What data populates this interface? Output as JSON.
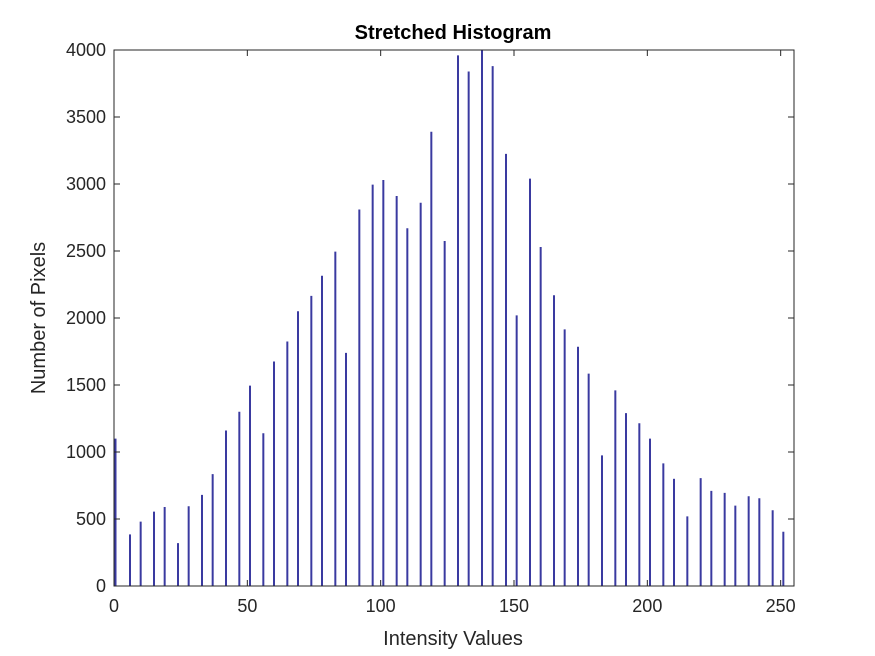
{
  "chart_data": {
    "type": "bar",
    "title": "Stretched Histogram",
    "xlabel": "Intensity Values",
    "ylabel": "Number of Pixels",
    "xlim": [
      0,
      255
    ],
    "ylim": [
      0,
      4000
    ],
    "xticks": [
      "0",
      "50",
      "100",
      "150",
      "200",
      "250"
    ],
    "yticks": [
      "0",
      "500",
      "1000",
      "1500",
      "2000",
      "2500",
      "3000",
      "3500",
      "4000"
    ],
    "grid": false,
    "bar_color": "#3a3aa0",
    "axis_color": "#262626",
    "x": [
      0,
      6,
      10,
      15,
      19,
      24,
      28,
      33,
      37,
      42,
      47,
      51,
      56,
      60,
      65,
      69,
      74,
      78,
      83,
      87,
      92,
      97,
      101,
      106,
      110,
      115,
      119,
      124,
      129,
      133,
      138,
      142,
      147,
      151,
      156,
      160,
      165,
      169,
      174,
      178,
      183,
      188,
      192,
      197,
      201,
      206,
      210,
      215,
      220,
      224,
      229,
      233,
      238,
      242,
      247,
      251
    ],
    "values": [
      1100,
      385,
      480,
      555,
      590,
      320,
      595,
      680,
      835,
      1160,
      1300,
      1495,
      1140,
      1675,
      1825,
      2050,
      2165,
      2315,
      2495,
      1740,
      2810,
      2995,
      3030,
      2910,
      2670,
      2860,
      3390,
      2575,
      3960,
      3840,
      4000,
      3880,
      3225,
      2020,
      3040,
      2530,
      2170,
      1915,
      1785,
      1585,
      975,
      1460,
      1290,
      1215,
      1100,
      915,
      800,
      520,
      805,
      710,
      695,
      600,
      670,
      655,
      565,
      405
    ]
  }
}
